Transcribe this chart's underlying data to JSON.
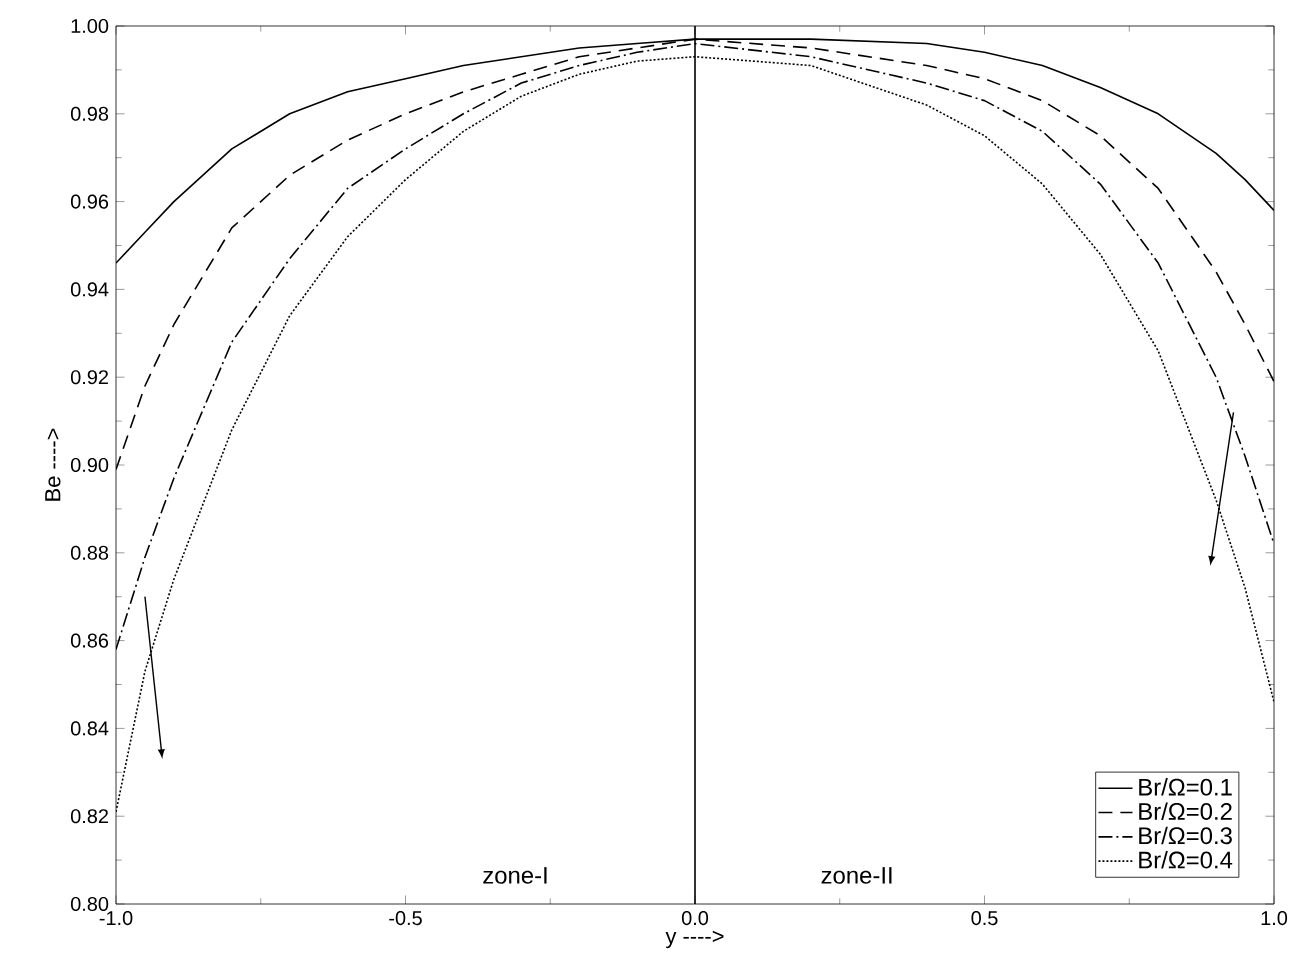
{
  "chart_data": {
    "type": "line",
    "xlabel": "y ---->",
    "ylabel": "Be ---->",
    "xlim": [
      -1,
      1
    ],
    "ylim": [
      0.8,
      1.0
    ],
    "xticks": [
      {
        "value": -1,
        "label": "-1.0"
      },
      {
        "value": -0.5,
        "label": "-0.5"
      },
      {
        "value": 0,
        "label": "0.0"
      },
      {
        "value": 0.5,
        "label": "0.5"
      },
      {
        "value": 1,
        "label": "1.0"
      }
    ],
    "yticks": [
      {
        "value": 0.8,
        "label": "0.80"
      },
      {
        "value": 0.82,
        "label": "0.82"
      },
      {
        "value": 0.84,
        "label": "0.84"
      },
      {
        "value": 0.86,
        "label": "0.86"
      },
      {
        "value": 0.88,
        "label": "0.88"
      },
      {
        "value": 0.9,
        "label": "0.90"
      },
      {
        "value": 0.92,
        "label": "0.92"
      },
      {
        "value": 0.94,
        "label": "0.94"
      },
      {
        "value": 0.96,
        "label": "0.96"
      },
      {
        "value": 0.98,
        "label": "0.98"
      },
      {
        "value": 1.0,
        "label": "1.00"
      }
    ],
    "x": [
      -1,
      -0.95,
      -0.9,
      -0.8,
      -0.7,
      -0.6,
      -0.5,
      -0.4,
      -0.3,
      -0.2,
      -0.1,
      0,
      0.2,
      0.4,
      0.5,
      0.6,
      0.7,
      0.8,
      0.9,
      0.95,
      1
    ],
    "series": [
      {
        "name": "Br/Ω=0.1",
        "color": "#000000",
        "line_style": "solid",
        "values": [
          0.946,
          0.953,
          0.96,
          0.972,
          0.98,
          0.985,
          0.988,
          0.991,
          0.993,
          0.995,
          0.996,
          0.997,
          0.997,
          0.996,
          0.994,
          0.991,
          0.986,
          0.98,
          0.971,
          0.965,
          0.958
        ]
      },
      {
        "name": "Br/Ω=0.2",
        "color": "#000000",
        "line_style": "dashed",
        "values": [
          0.899,
          0.918,
          0.932,
          0.954,
          0.966,
          0.974,
          0.98,
          0.985,
          0.989,
          0.993,
          0.995,
          0.997,
          0.995,
          0.991,
          0.988,
          0.983,
          0.975,
          0.963,
          0.944,
          0.932,
          0.919
        ]
      },
      {
        "name": "Br/Ω=0.3",
        "color": "#000000",
        "line_style": "dashdot",
        "values": [
          0.858,
          0.879,
          0.897,
          0.928,
          0.947,
          0.963,
          0.972,
          0.98,
          0.987,
          0.991,
          0.994,
          0.996,
          0.993,
          0.987,
          0.983,
          0.976,
          0.964,
          0.946,
          0.92,
          0.902,
          0.882
        ]
      },
      {
        "name": "Br/Ω=0.4",
        "color": "#000000",
        "line_style": "dotted",
        "values": [
          0.821,
          0.853,
          0.874,
          0.908,
          0.934,
          0.952,
          0.965,
          0.976,
          0.984,
          0.989,
          0.992,
          0.993,
          0.991,
          0.982,
          0.975,
          0.964,
          0.948,
          0.926,
          0.892,
          0.872,
          0.846
        ]
      }
    ],
    "ref_lines": [
      {
        "axis": "x",
        "value": 0,
        "color": "#000000",
        "line_style": "solid"
      }
    ],
    "annotations": [
      "zone-I",
      "zone-II"
    ],
    "legend": "bottom right",
    "grid": false,
    "marker": "none"
  }
}
